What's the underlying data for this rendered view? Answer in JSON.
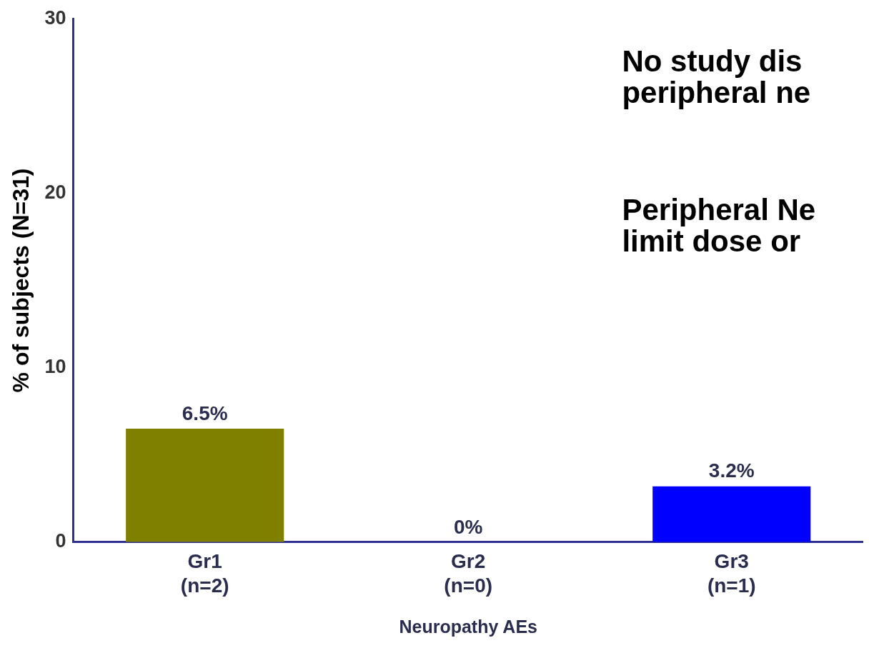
{
  "chart_data": {
    "type": "bar",
    "ylabel": "% of subjects (N=31)",
    "xlabel": "Neuropathy AEs",
    "categories": [
      "Gr1\n(n=2)",
      "Gr2\n(n=0)",
      "Gr3\n(n=1)"
    ],
    "values": [
      6.5,
      0,
      3.2
    ],
    "colors": [
      "#808000",
      "#808000",
      "#0000ff"
    ],
    "value_labels": [
      "6.5%",
      "0%",
      "3.2%"
    ],
    "ylim": [
      0,
      30
    ],
    "yticks": [
      0,
      10,
      20,
      30
    ],
    "grid": false,
    "legend": false,
    "annotations": [
      "No study dis\nperipheral ne",
      "Peripheral Ne\nlimit dose or"
    ]
  }
}
